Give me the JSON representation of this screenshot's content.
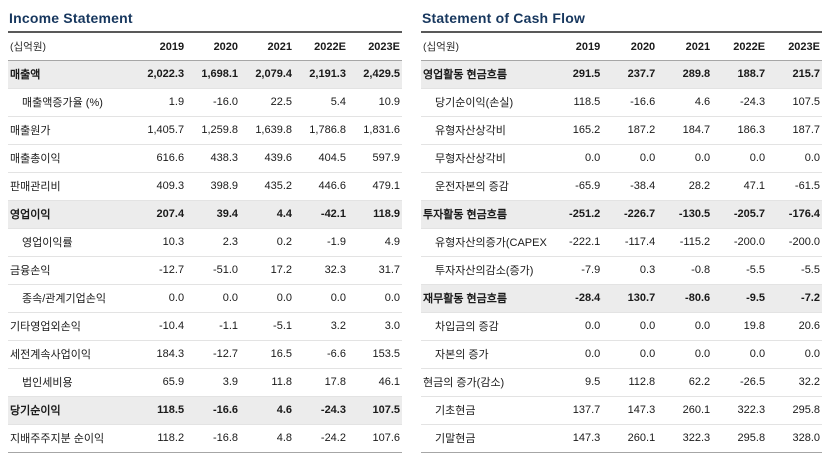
{
  "colors": {
    "title": "#17375e",
    "row_highlight": "#ececec",
    "border_dark": "#595959",
    "border_mid": "#a6a6a6",
    "border_light": "#e3e3e3",
    "text": "#1a1a1a"
  },
  "income_statement": {
    "title": "Income Statement",
    "unit_label": "(십억원)",
    "columns": [
      "2019",
      "2020",
      "2021",
      "2022E",
      "2023E"
    ],
    "rows": [
      {
        "label": "매출액",
        "indent": 0,
        "bold": true,
        "values": [
          "2,022.3",
          "1,698.1",
          "2,079.4",
          "2,191.3",
          "2,429.5"
        ]
      },
      {
        "label": "매출액증가율 (%)",
        "indent": 1,
        "bold": false,
        "values": [
          "1.9",
          "-16.0",
          "22.5",
          "5.4",
          "10.9"
        ]
      },
      {
        "label": "매출원가",
        "indent": 0,
        "bold": false,
        "values": [
          "1,405.7",
          "1,259.8",
          "1,639.8",
          "1,786.8",
          "1,831.6"
        ]
      },
      {
        "label": "매출총이익",
        "indent": 0,
        "bold": false,
        "values": [
          "616.6",
          "438.3",
          "439.6",
          "404.5",
          "597.9"
        ]
      },
      {
        "label": "판매관리비",
        "indent": 0,
        "bold": false,
        "values": [
          "409.3",
          "398.9",
          "435.2",
          "446.6",
          "479.1"
        ]
      },
      {
        "label": "영업이익",
        "indent": 0,
        "bold": true,
        "values": [
          "207.4",
          "39.4",
          "4.4",
          "-42.1",
          "118.9"
        ]
      },
      {
        "label": "영업이익률",
        "indent": 1,
        "bold": false,
        "values": [
          "10.3",
          "2.3",
          "0.2",
          "-1.9",
          "4.9"
        ]
      },
      {
        "label": "금융손익",
        "indent": 0,
        "bold": false,
        "values": [
          "-12.7",
          "-51.0",
          "17.2",
          "32.3",
          "31.7"
        ]
      },
      {
        "label": "종속/관계기업손익",
        "indent": 1,
        "bold": false,
        "values": [
          "0.0",
          "0.0",
          "0.0",
          "0.0",
          "0.0"
        ]
      },
      {
        "label": "기타영업외손익",
        "indent": 0,
        "bold": false,
        "values": [
          "-10.4",
          "-1.1",
          "-5.1",
          "3.2",
          "3.0"
        ]
      },
      {
        "label": "세전계속사업이익",
        "indent": 0,
        "bold": false,
        "values": [
          "184.3",
          "-12.7",
          "16.5",
          "-6.6",
          "153.5"
        ]
      },
      {
        "label": "법인세비용",
        "indent": 1,
        "bold": false,
        "values": [
          "65.9",
          "3.9",
          "11.8",
          "17.8",
          "46.1"
        ]
      },
      {
        "label": "당기순이익",
        "indent": 0,
        "bold": true,
        "values": [
          "118.5",
          "-16.6",
          "4.6",
          "-24.3",
          "107.5"
        ]
      },
      {
        "label": "지배주주지분 순이익",
        "indent": 0,
        "bold": false,
        "values": [
          "118.2",
          "-16.8",
          "4.8",
          "-24.2",
          "107.6"
        ]
      }
    ]
  },
  "cash_flow_statement": {
    "title": "Statement of Cash Flow",
    "unit_label": "(십억원)",
    "columns": [
      "2019",
      "2020",
      "2021",
      "2022E",
      "2023E"
    ],
    "rows": [
      {
        "label": "영업활동 현금흐름",
        "indent": 0,
        "bold": true,
        "values": [
          "291.5",
          "237.7",
          "289.8",
          "188.7",
          "215.7"
        ]
      },
      {
        "label": "당기순이익(손실)",
        "indent": 1,
        "bold": false,
        "values": [
          "118.5",
          "-16.6",
          "4.6",
          "-24.3",
          "107.5"
        ]
      },
      {
        "label": "유형자산상각비",
        "indent": 1,
        "bold": false,
        "values": [
          "165.2",
          "187.2",
          "184.7",
          "186.3",
          "187.7"
        ]
      },
      {
        "label": "무형자산상각비",
        "indent": 1,
        "bold": false,
        "values": [
          "0.0",
          "0.0",
          "0.0",
          "0.0",
          "0.0"
        ]
      },
      {
        "label": "운전자본의 증감",
        "indent": 1,
        "bold": false,
        "values": [
          "-65.9",
          "-38.4",
          "28.2",
          "47.1",
          "-61.5"
        ]
      },
      {
        "label": "투자활동 현금흐름",
        "indent": 0,
        "bold": true,
        "values": [
          "-251.2",
          "-226.7",
          "-130.5",
          "-205.7",
          "-176.4"
        ]
      },
      {
        "label": "유형자산의증가(CAPEX)",
        "indent": 1,
        "bold": false,
        "values": [
          "-222.1",
          "-117.4",
          "-115.2",
          "-200.0",
          "-200.0"
        ]
      },
      {
        "label": "투자자산의감소(증가)",
        "indent": 1,
        "bold": false,
        "values": [
          "-7.9",
          "0.3",
          "-0.8",
          "-5.5",
          "-5.5"
        ]
      },
      {
        "label": "재무활동 현금흐름",
        "indent": 0,
        "bold": true,
        "values": [
          "-28.4",
          "130.7",
          "-80.6",
          "-9.5",
          "-7.2"
        ]
      },
      {
        "label": "차입금의 증감",
        "indent": 1,
        "bold": false,
        "values": [
          "0.0",
          "0.0",
          "0.0",
          "19.8",
          "20.6"
        ]
      },
      {
        "label": "자본의 증가",
        "indent": 1,
        "bold": false,
        "values": [
          "0.0",
          "0.0",
          "0.0",
          "0.0",
          "0.0"
        ]
      },
      {
        "label": "현금의 증가(감소)",
        "indent": 0,
        "bold": false,
        "values": [
          "9.5",
          "112.8",
          "62.2",
          "-26.5",
          "32.2"
        ]
      },
      {
        "label": "기초현금",
        "indent": 1,
        "bold": false,
        "values": [
          "137.7",
          "147.3",
          "260.1",
          "322.3",
          "295.8"
        ]
      },
      {
        "label": "기말현금",
        "indent": 1,
        "bold": false,
        "values": [
          "147.3",
          "260.1",
          "322.3",
          "295.8",
          "328.0"
        ]
      }
    ]
  }
}
